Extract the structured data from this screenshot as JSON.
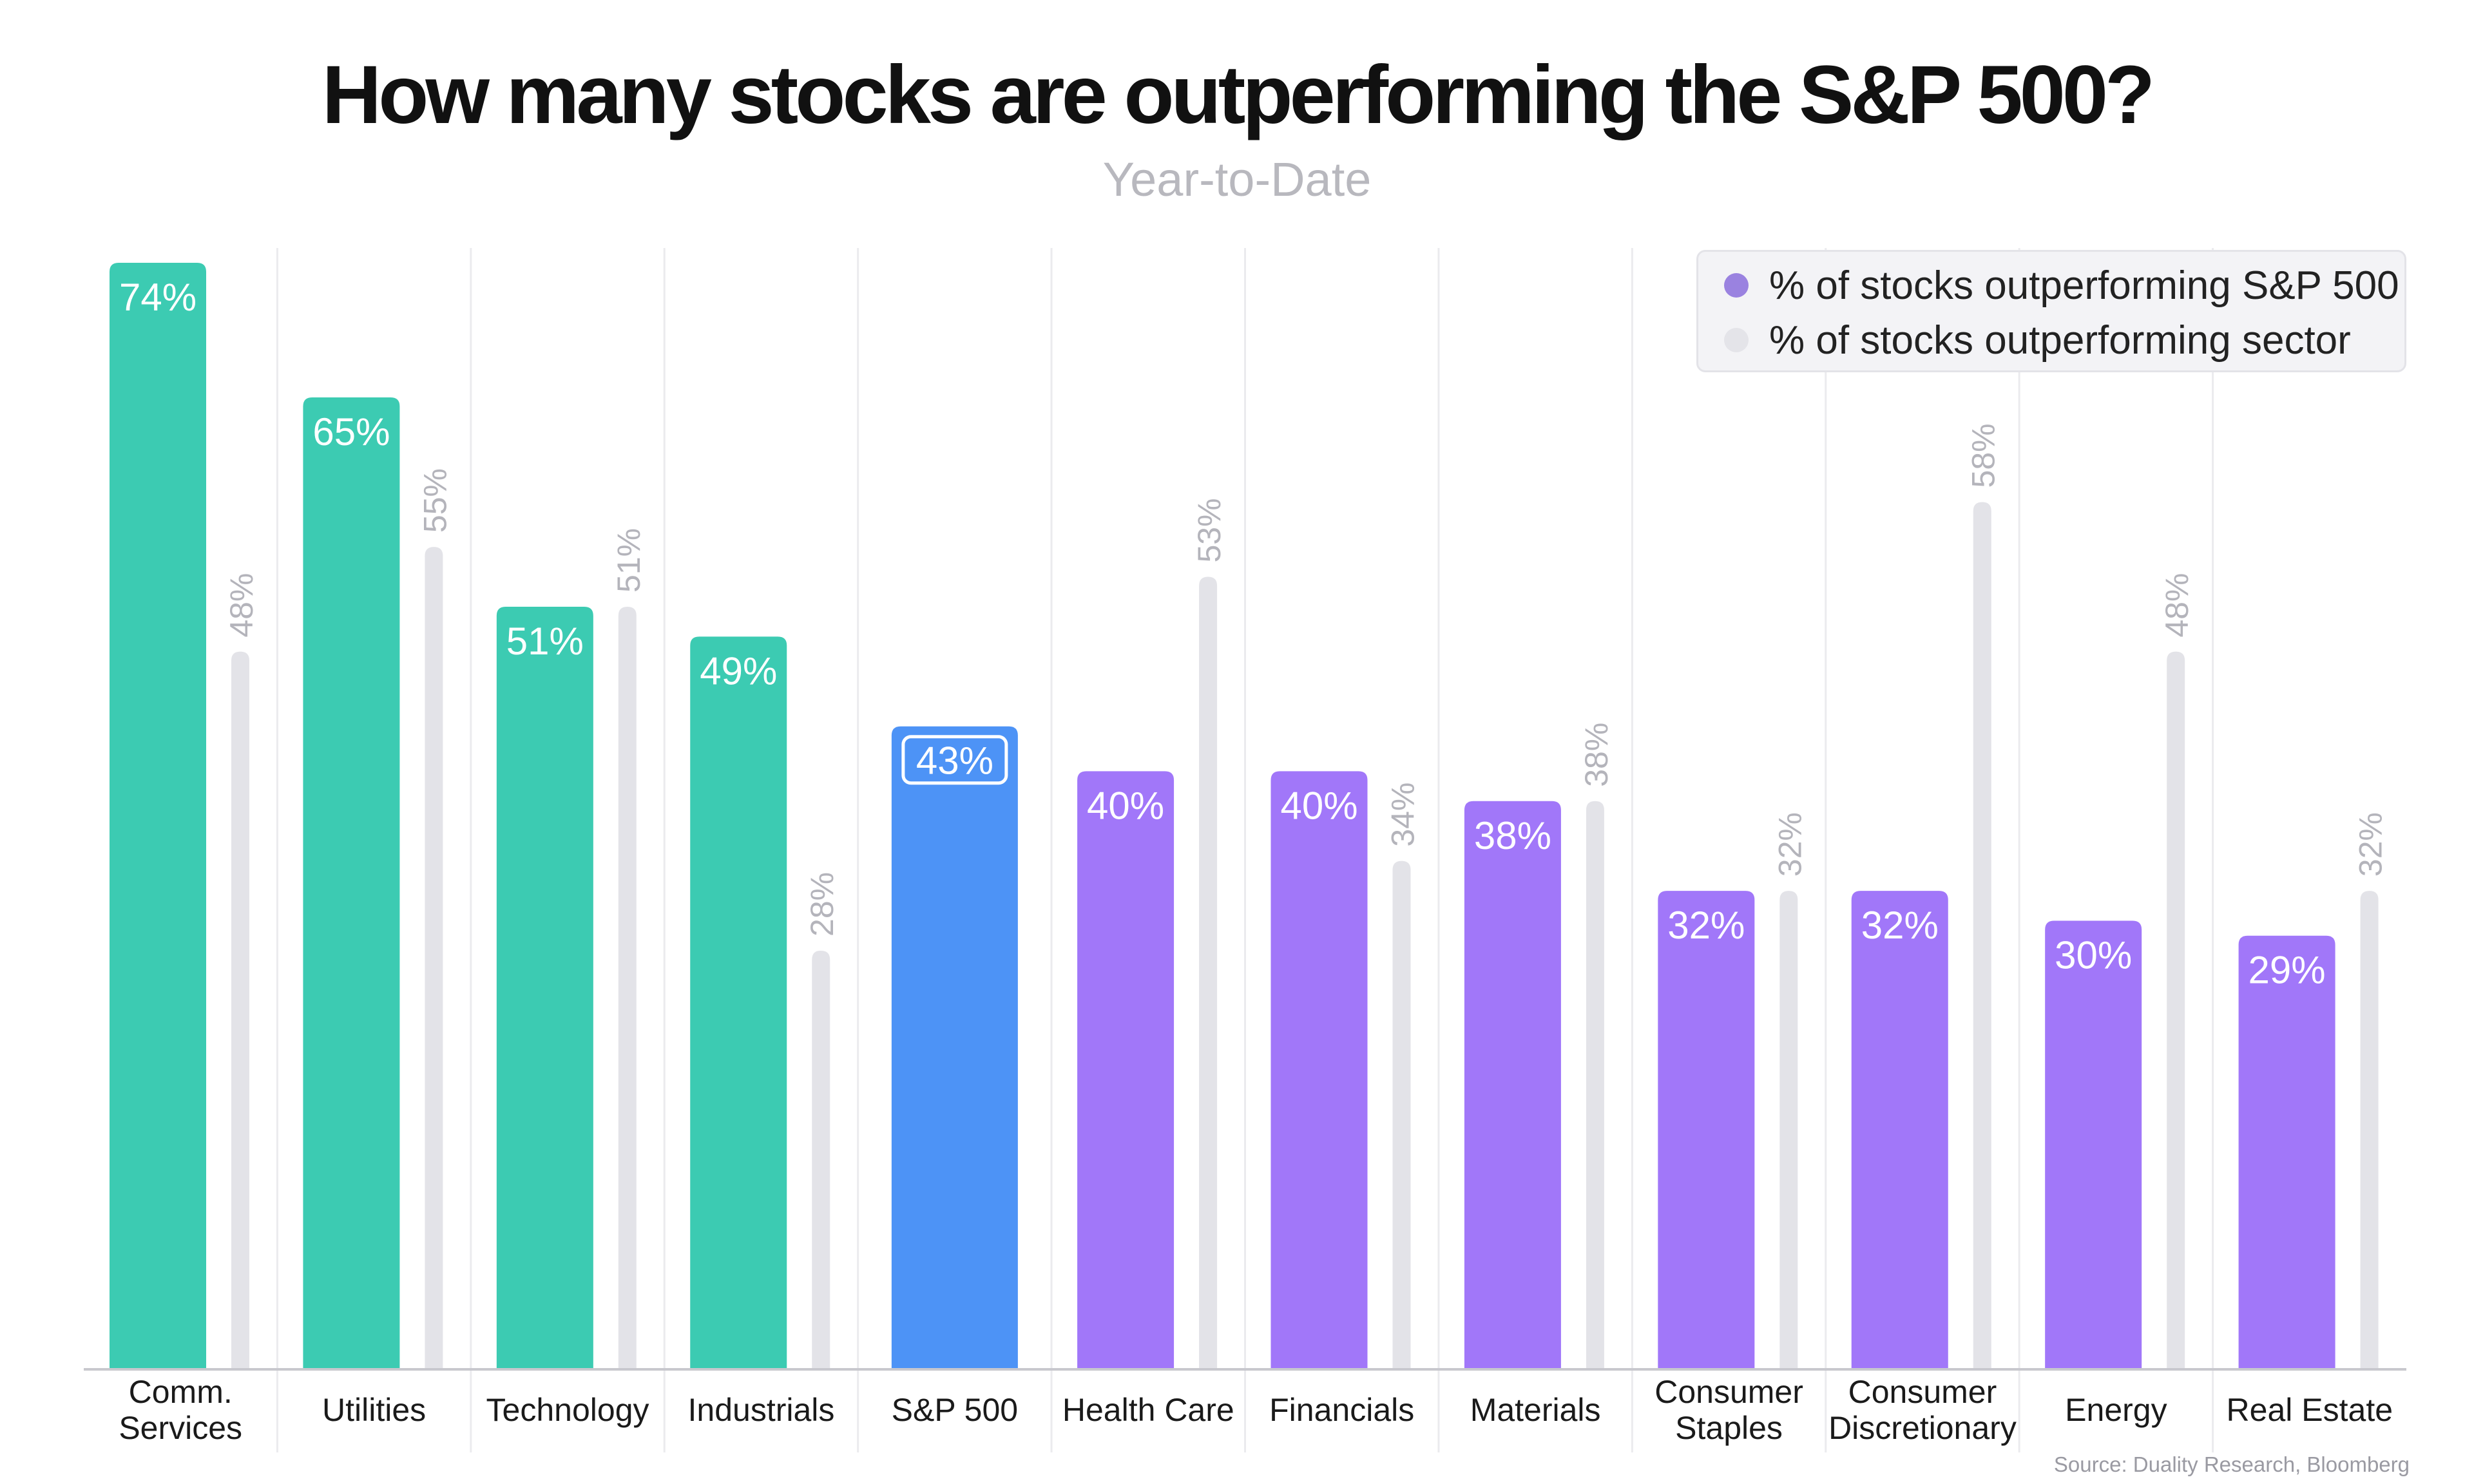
{
  "title": "How many stocks are outperforming the S&P 500?",
  "subtitle": "Year-to-Date",
  "source": "Source: Duality Research, Bloomberg",
  "legend": [
    {
      "label": "% of stocks outperforming S&P 500",
      "swatch": "#9a82e0"
    },
    {
      "label": "% of stocks outperforming sector",
      "swatch": "#e4e4e9"
    }
  ],
  "colors": {
    "teal": "#3ccbb2",
    "blue": "#4d93f6",
    "purple": "#a177f9",
    "gray": "#e3e3e8",
    "gray_label": "#b4b4bb",
    "gridline": "#ebebee",
    "baseline": "#c8c8ce"
  },
  "chart_data": {
    "type": "bar",
    "categories": [
      "Comm.\nServices",
      "Utilities",
      "Technology",
      "Industrials",
      "S&P 500",
      "Health Care",
      "Financials",
      "Materials",
      "Consumer\nStaples",
      "Consumer\nDiscretionary",
      "Energy",
      "Real Estate"
    ],
    "series": [
      {
        "name": "% of stocks outperforming S&P 500",
        "values": [
          74,
          65,
          51,
          49,
          43,
          40,
          40,
          38,
          32,
          32,
          30,
          29
        ],
        "labels": [
          "74%",
          "65%",
          "51%",
          "49%",
          "43%",
          "40%",
          "40%",
          "38%",
          "32%",
          "32%",
          "30%",
          "29%"
        ],
        "colors": [
          "teal",
          "teal",
          "teal",
          "teal",
          "blue",
          "purple",
          "purple",
          "purple",
          "purple",
          "purple",
          "purple",
          "purple"
        ]
      },
      {
        "name": "% of stocks outperforming sector",
        "values": [
          48,
          55,
          51,
          28,
          null,
          53,
          34,
          38,
          32,
          58,
          48,
          32
        ],
        "labels": [
          "48%",
          "55%",
          "51%",
          "28%",
          null,
          "53%",
          "34%",
          "38%",
          "32%",
          "58%",
          "48%",
          "32%"
        ]
      }
    ],
    "ylim": [
      0,
      74
    ],
    "grid": "vertical separators",
    "legend_position": "top-right"
  }
}
